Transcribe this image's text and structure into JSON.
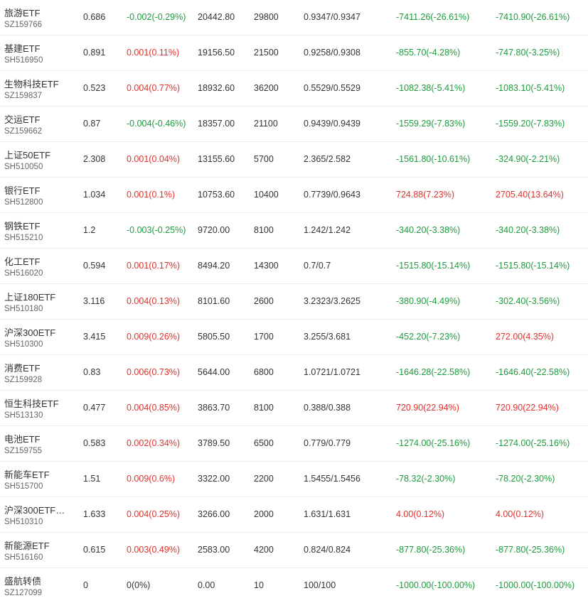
{
  "colors": {
    "up": "#e0322c",
    "down": "#1e9b3d",
    "flat": "#333333"
  },
  "rows": [
    {
      "name": "旅游ETF",
      "code": "SZ159766",
      "price": "0.686",
      "change": "-0.002(-0.29%)",
      "change_dir": "down",
      "value": "20442.80",
      "qty": "29800",
      "cost": "0.9347/0.9347",
      "pl1": "-7411.26(-26.61%)",
      "pl1_dir": "down",
      "pl2": "-7410.90(-26.61%)",
      "pl2_dir": "down"
    },
    {
      "name": "基建ETF",
      "code": "SH516950",
      "price": "0.891",
      "change": "0.001(0.11%)",
      "change_dir": "up",
      "value": "19156.50",
      "qty": "21500",
      "cost": "0.9258/0.9308",
      "pl1": "-855.70(-4.28%)",
      "pl1_dir": "down",
      "pl2": "-747.80(-3.25%)",
      "pl2_dir": "down"
    },
    {
      "name": "生物科技ETF",
      "code": "SZ159837",
      "price": "0.523",
      "change": "0.004(0.77%)",
      "change_dir": "up",
      "value": "18932.60",
      "qty": "36200",
      "cost": "0.5529/0.5529",
      "pl1": "-1082.38(-5.41%)",
      "pl1_dir": "down",
      "pl2": "-1083.10(-5.41%)",
      "pl2_dir": "down"
    },
    {
      "name": "交运ETF",
      "code": "SZ159662",
      "price": "0.87",
      "change": "-0.004(-0.46%)",
      "change_dir": "down",
      "value": "18357.00",
      "qty": "21100",
      "cost": "0.9439/0.9439",
      "pl1": "-1559.29(-7.83%)",
      "pl1_dir": "down",
      "pl2": "-1559.20(-7.83%)",
      "pl2_dir": "down"
    },
    {
      "name": "上证50ETF",
      "code": "SH510050",
      "price": "2.308",
      "change": "0.001(0.04%)",
      "change_dir": "up",
      "value": "13155.60",
      "qty": "5700",
      "cost": "2.365/2.582",
      "pl1": "-1561.80(-10.61%)",
      "pl1_dir": "down",
      "pl2": "-324.90(-2.21%)",
      "pl2_dir": "down"
    },
    {
      "name": "银行ETF",
      "code": "SH512800",
      "price": "1.034",
      "change": "0.001(0.1%)",
      "change_dir": "up",
      "value": "10753.60",
      "qty": "10400",
      "cost": "0.7739/0.9643",
      "pl1": "724.88(7.23%)",
      "pl1_dir": "up",
      "pl2": "2705.40(13.64%)",
      "pl2_dir": "up"
    },
    {
      "name": "钢铁ETF",
      "code": "SH515210",
      "price": "1.2",
      "change": "-0.003(-0.25%)",
      "change_dir": "down",
      "value": "9720.00",
      "qty": "8100",
      "cost": "1.242/1.242",
      "pl1": "-340.20(-3.38%)",
      "pl1_dir": "down",
      "pl2": "-340.20(-3.38%)",
      "pl2_dir": "down"
    },
    {
      "name": "化工ETF",
      "code": "SH516020",
      "price": "0.594",
      "change": "0.001(0.17%)",
      "change_dir": "up",
      "value": "8494.20",
      "qty": "14300",
      "cost": "0.7/0.7",
      "pl1": "-1515.80(-15.14%)",
      "pl1_dir": "down",
      "pl2": "-1515.80(-15.14%)",
      "pl2_dir": "down"
    },
    {
      "name": "上证180ETF",
      "code": "SH510180",
      "price": "3.116",
      "change": "0.004(0.13%)",
      "change_dir": "up",
      "value": "8101.60",
      "qty": "2600",
      "cost": "3.2323/3.2625",
      "pl1": "-380.90(-4.49%)",
      "pl1_dir": "down",
      "pl2": "-302.40(-3.56%)",
      "pl2_dir": "down"
    },
    {
      "name": "沪深300ETF",
      "code": "SH510300",
      "price": "3.415",
      "change": "0.009(0.26%)",
      "change_dir": "up",
      "value": "5805.50",
      "qty": "1700",
      "cost": "3.255/3.681",
      "pl1": "-452.20(-7.23%)",
      "pl1_dir": "down",
      "pl2": "272.00(4.35%)",
      "pl2_dir": "up"
    },
    {
      "name": "消费ETF",
      "code": "SZ159928",
      "price": "0.83",
      "change": "0.006(0.73%)",
      "change_dir": "up",
      "value": "5644.00",
      "qty": "6800",
      "cost": "1.0721/1.0721",
      "pl1": "-1646.28(-22.58%)",
      "pl1_dir": "down",
      "pl2": "-1646.40(-22.58%)",
      "pl2_dir": "down"
    },
    {
      "name": "恒生科技ETF",
      "code": "SH513130",
      "price": "0.477",
      "change": "0.004(0.85%)",
      "change_dir": "up",
      "value": "3863.70",
      "qty": "8100",
      "cost": "0.388/0.388",
      "pl1": "720.90(22.94%)",
      "pl1_dir": "up",
      "pl2": "720.90(22.94%)",
      "pl2_dir": "up"
    },
    {
      "name": "电池ETF",
      "code": "SZ159755",
      "price": "0.583",
      "change": "0.002(0.34%)",
      "change_dir": "up",
      "value": "3789.50",
      "qty": "6500",
      "cost": "0.779/0.779",
      "pl1": "-1274.00(-25.16%)",
      "pl1_dir": "down",
      "pl2": "-1274.00(-25.16%)",
      "pl2_dir": "down"
    },
    {
      "name": "新能车ETF",
      "code": "SH515700",
      "price": "1.51",
      "change": "0.009(0.6%)",
      "change_dir": "up",
      "value": "3322.00",
      "qty": "2200",
      "cost": "1.5455/1.5456",
      "pl1": "-78.32(-2.30%)",
      "pl1_dir": "down",
      "pl2": "-78.20(-2.30%)",
      "pl2_dir": "down"
    },
    {
      "name": "沪深300ETF…",
      "code": "SH510310",
      "price": "1.633",
      "change": "0.004(0.25%)",
      "change_dir": "up",
      "value": "3266.00",
      "qty": "2000",
      "cost": "1.631/1.631",
      "pl1": "4.00(0.12%)",
      "pl1_dir": "up",
      "pl2": "4.00(0.12%)",
      "pl2_dir": "up"
    },
    {
      "name": "新能源ETF",
      "code": "SH516160",
      "price": "0.615",
      "change": "0.003(0.49%)",
      "change_dir": "up",
      "value": "2583.00",
      "qty": "4200",
      "cost": "0.824/0.824",
      "pl1": "-877.80(-25.36%)",
      "pl1_dir": "down",
      "pl2": "-877.80(-25.36%)",
      "pl2_dir": "down"
    },
    {
      "name": "盛航转债",
      "code": "SZ127099",
      "price": "0",
      "change": "0(0%)",
      "change_dir": "flat",
      "value": "0.00",
      "qty": "10",
      "cost": "100/100",
      "pl1": "-1000.00(-100.00%)",
      "pl1_dir": "down",
      "pl2": "-1000.00(-100.00%)",
      "pl2_dir": "down"
    }
  ]
}
